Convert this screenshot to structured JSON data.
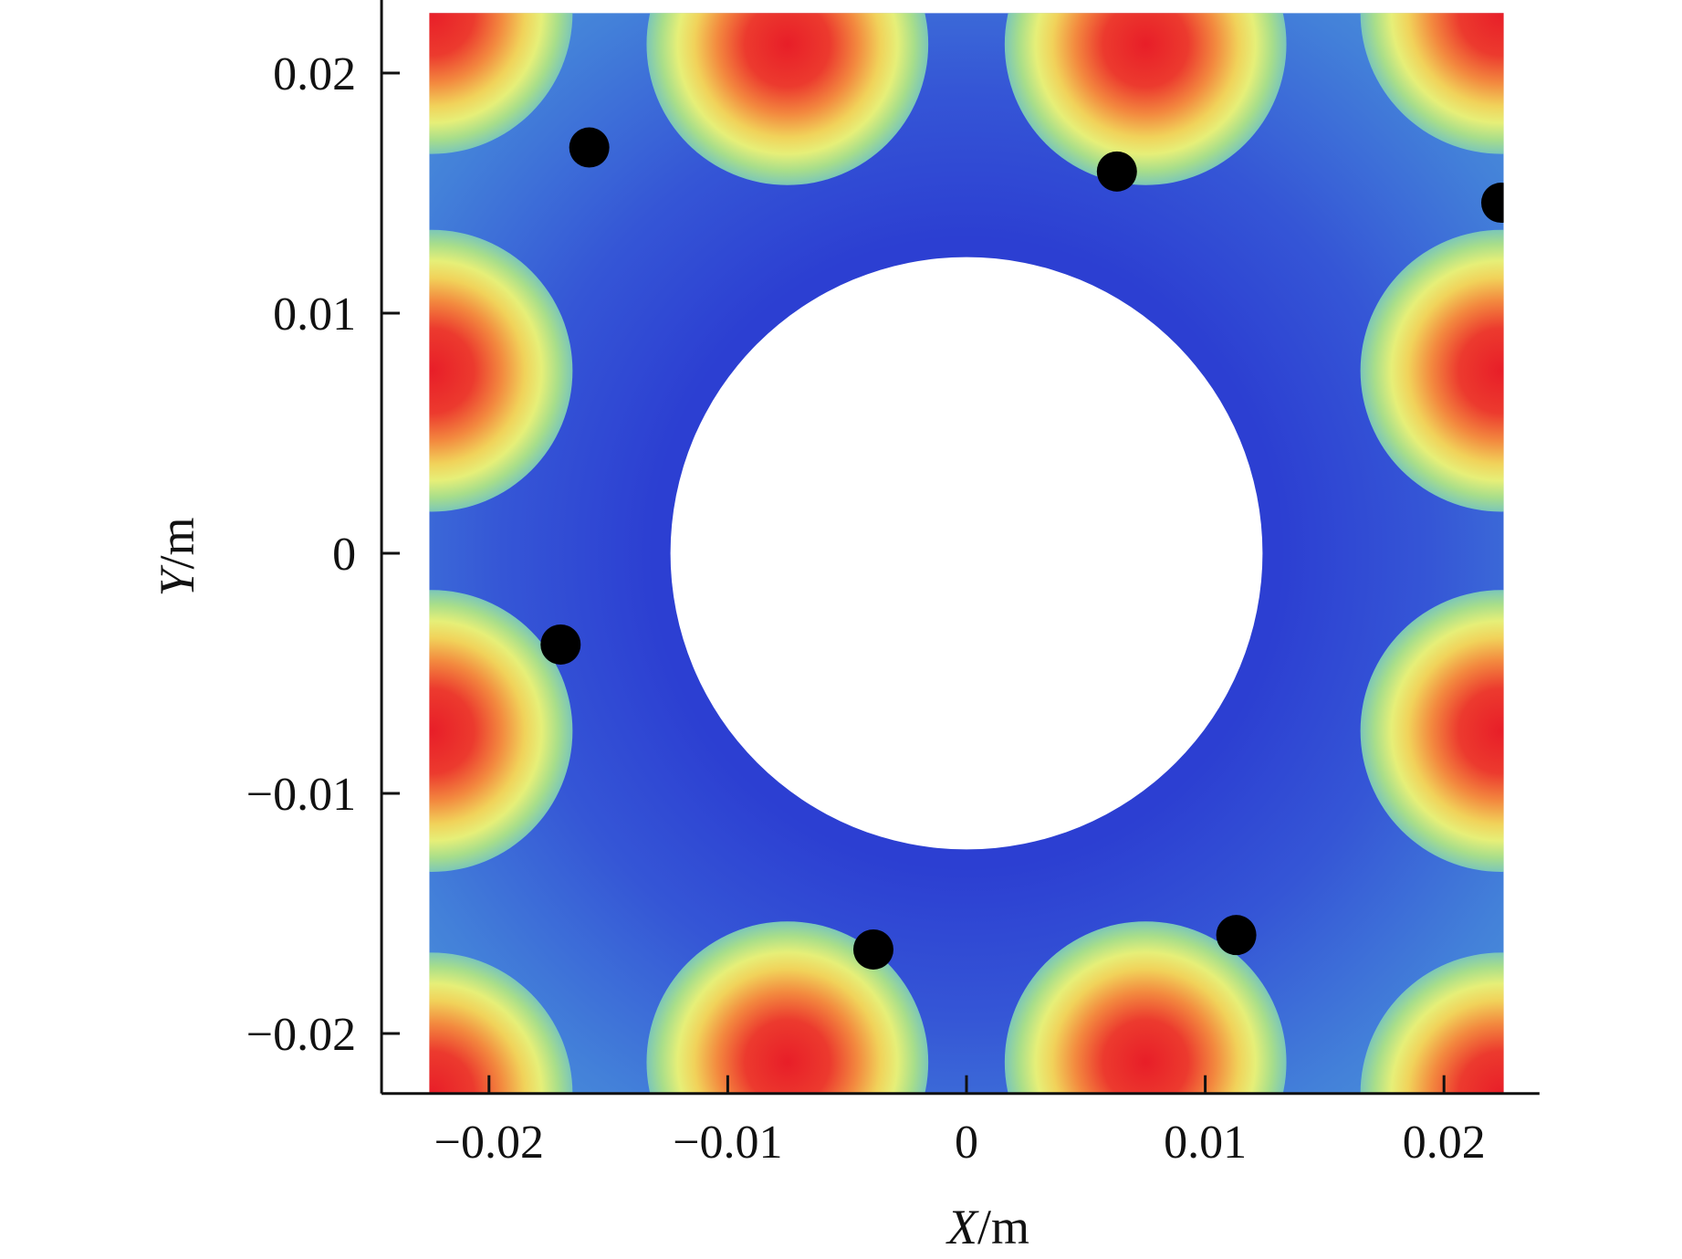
{
  "chart_data": {
    "type": "heatmap",
    "title": "",
    "xlabel_var": "X",
    "xlabel_unit": "/m",
    "ylabel_var": "Y",
    "ylabel_unit": "/m",
    "xlim": [
      -0.0225,
      0.0225
    ],
    "ylim": [
      -0.0225,
      0.0225
    ],
    "axis_range_x": [
      -0.0245,
      0.024
    ],
    "axis_range_y": [
      -0.0225,
      0.0232
    ],
    "x_ticks": [
      {
        "value": -0.02,
        "label": "−0.02"
      },
      {
        "value": -0.01,
        "label": "−0.01"
      },
      {
        "value": 0,
        "label": "0"
      },
      {
        "value": 0.01,
        "label": "0.01"
      },
      {
        "value": 0.02,
        "label": "0.02"
      }
    ],
    "y_ticks": [
      {
        "value": 0.02,
        "label": "0.02"
      },
      {
        "value": 0.01,
        "label": "0.01"
      },
      {
        "value": 0,
        "label": "0"
      },
      {
        "value": -0.01,
        "label": "−0.01"
      },
      {
        "value": -0.02,
        "label": "−0.02"
      }
    ],
    "central_hole": {
      "center": [
        0,
        0
      ],
      "radius": 0.0124
    },
    "hotspot_radius": 0.0059,
    "hotspots": [
      {
        "x": -0.0075,
        "y": 0.0212
      },
      {
        "x": 0.0075,
        "y": 0.0212
      },
      {
        "x": -0.0224,
        "y": 0.0076
      },
      {
        "x": 0.0224,
        "y": 0.0076
      },
      {
        "x": -0.0224,
        "y": -0.0074
      },
      {
        "x": 0.0224,
        "y": -0.0074
      },
      {
        "x": -0.0075,
        "y": -0.0212
      },
      {
        "x": 0.0075,
        "y": -0.0212
      },
      {
        "x": -0.0224,
        "y": 0.0225
      },
      {
        "x": 0.0224,
        "y": 0.0225
      },
      {
        "x": -0.0224,
        "y": -0.0225
      },
      {
        "x": 0.0224,
        "y": -0.0225
      }
    ],
    "points": [
      {
        "x": -0.0158,
        "y": 0.0169
      },
      {
        "x": 0.0063,
        "y": 0.0159
      },
      {
        "x": 0.0224,
        "y": 0.0146
      },
      {
        "x": -0.017,
        "y": -0.0038
      },
      {
        "x": -0.0039,
        "y": -0.0165
      },
      {
        "x": 0.0113,
        "y": -0.0159
      }
    ],
    "colors": {
      "near_hole": "#2c3fd2",
      "field_mid": "#3a5fd8",
      "field_outer": "#4a90d8",
      "hot_core": "#e8202a",
      "hot_mid": "#f3833e",
      "hot_ring": "#efe875",
      "hot_edge": "#9bdc8c",
      "points": "#000000",
      "hole": "#ffffff"
    },
    "grid": false,
    "legend": "none"
  }
}
